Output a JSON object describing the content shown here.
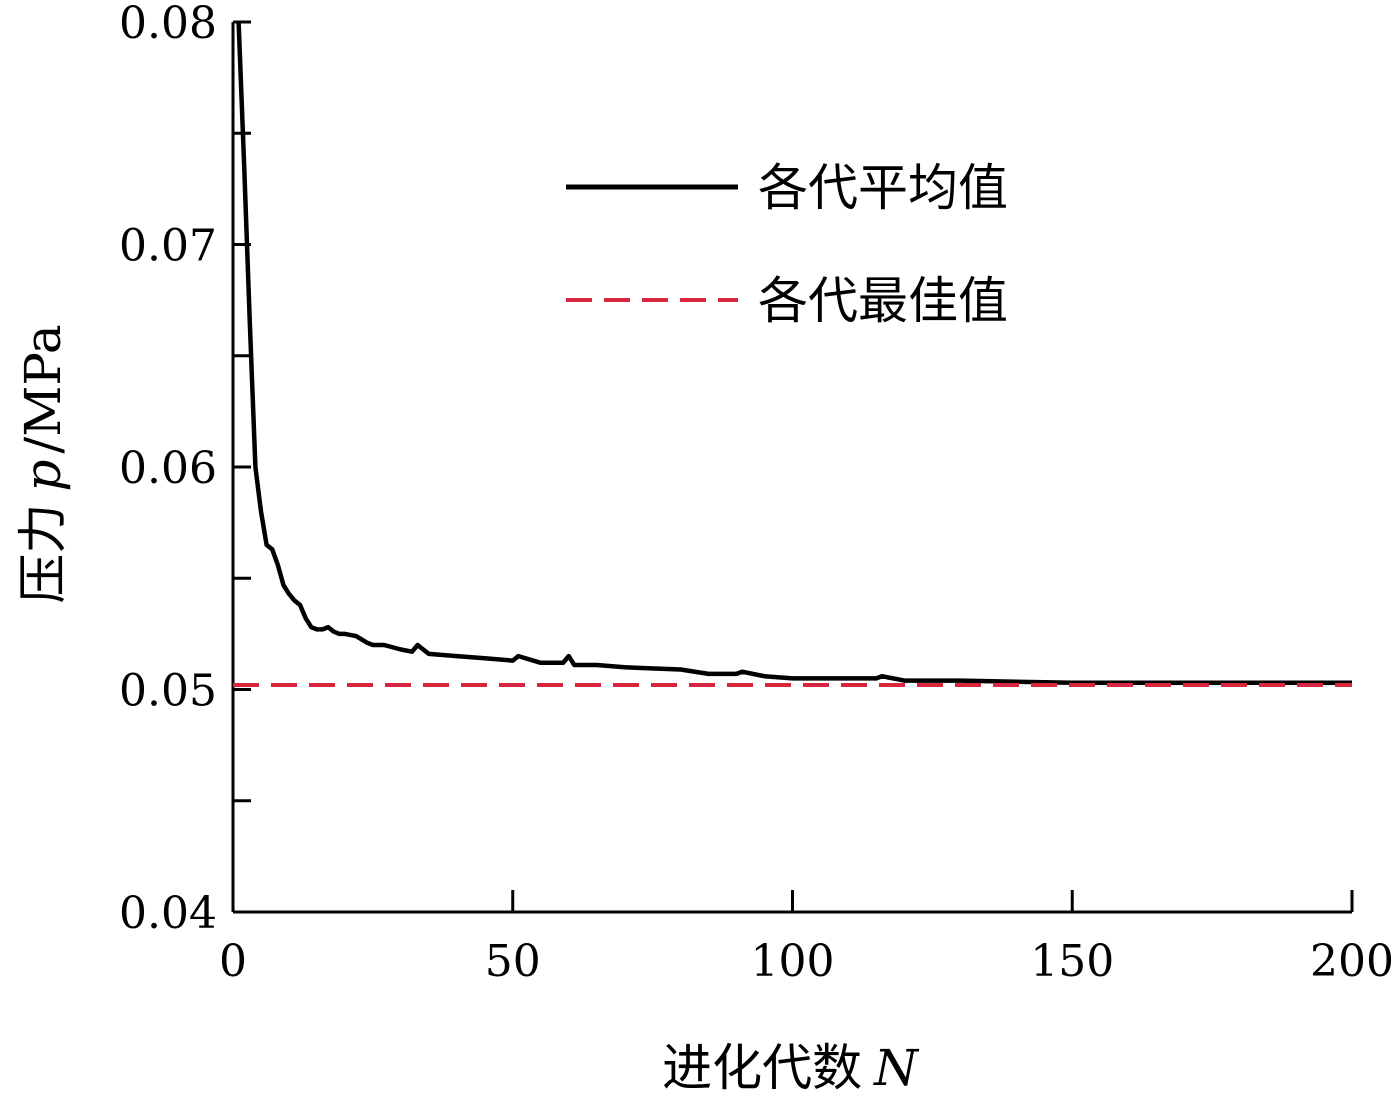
{
  "chart_data": {
    "type": "line",
    "xlabel": "进化代数",
    "xlabel_var": "N",
    "ylabel": "压力",
    "ylabel_var": "p",
    "ylabel_unit": "/MPa",
    "xlim": [
      0,
      200
    ],
    "ylim": [
      0.04,
      0.08
    ],
    "x_ticks": [
      0,
      50,
      100,
      150,
      200
    ],
    "x_tick_labels": [
      "0",
      "50",
      "100",
      "150",
      "200"
    ],
    "y_ticks": [
      0.04,
      0.05,
      0.06,
      0.07,
      0.08
    ],
    "y_tick_labels": [
      "0.04",
      "0.05",
      "0.06",
      "0.07",
      "0.08"
    ],
    "y_minor_ticks": [
      0.045,
      0.055,
      0.065,
      0.075
    ],
    "grid": false,
    "legend_position": "top-right",
    "series": [
      {
        "name": "各代平均值",
        "style": "solid",
        "color": "#000000",
        "x": [
          1,
          2,
          3,
          4,
          5,
          6,
          7,
          8,
          9,
          10,
          11,
          12,
          13,
          14,
          15,
          16,
          17,
          18,
          19,
          20,
          22,
          24,
          25,
          27,
          30,
          32,
          33,
          35,
          40,
          45,
          50,
          51,
          55,
          59,
          60,
          61,
          65,
          70,
          80,
          85,
          90,
          91,
          95,
          100,
          110,
          115,
          116,
          120,
          130,
          150,
          175,
          200
        ],
        "y": [
          0.08,
          0.0735,
          0.0665,
          0.06,
          0.058,
          0.0565,
          0.0563,
          0.0556,
          0.0547,
          0.0543,
          0.054,
          0.0538,
          0.0532,
          0.0528,
          0.0527,
          0.0527,
          0.0528,
          0.0526,
          0.0525,
          0.0525,
          0.0524,
          0.0521,
          0.052,
          0.052,
          0.0518,
          0.0517,
          0.052,
          0.0516,
          0.0515,
          0.0514,
          0.0513,
          0.0515,
          0.0512,
          0.0512,
          0.0515,
          0.0511,
          0.0511,
          0.051,
          0.0509,
          0.0507,
          0.0507,
          0.0508,
          0.0506,
          0.0505,
          0.0505,
          0.0505,
          0.0506,
          0.0504,
          0.0504,
          0.0503,
          0.0503,
          0.0503
        ]
      },
      {
        "name": "各代最佳值",
        "style": "dashed",
        "color": "#d7263d",
        "x": [
          0,
          200
        ],
        "y": [
          0.0502,
          0.0502
        ]
      }
    ]
  }
}
